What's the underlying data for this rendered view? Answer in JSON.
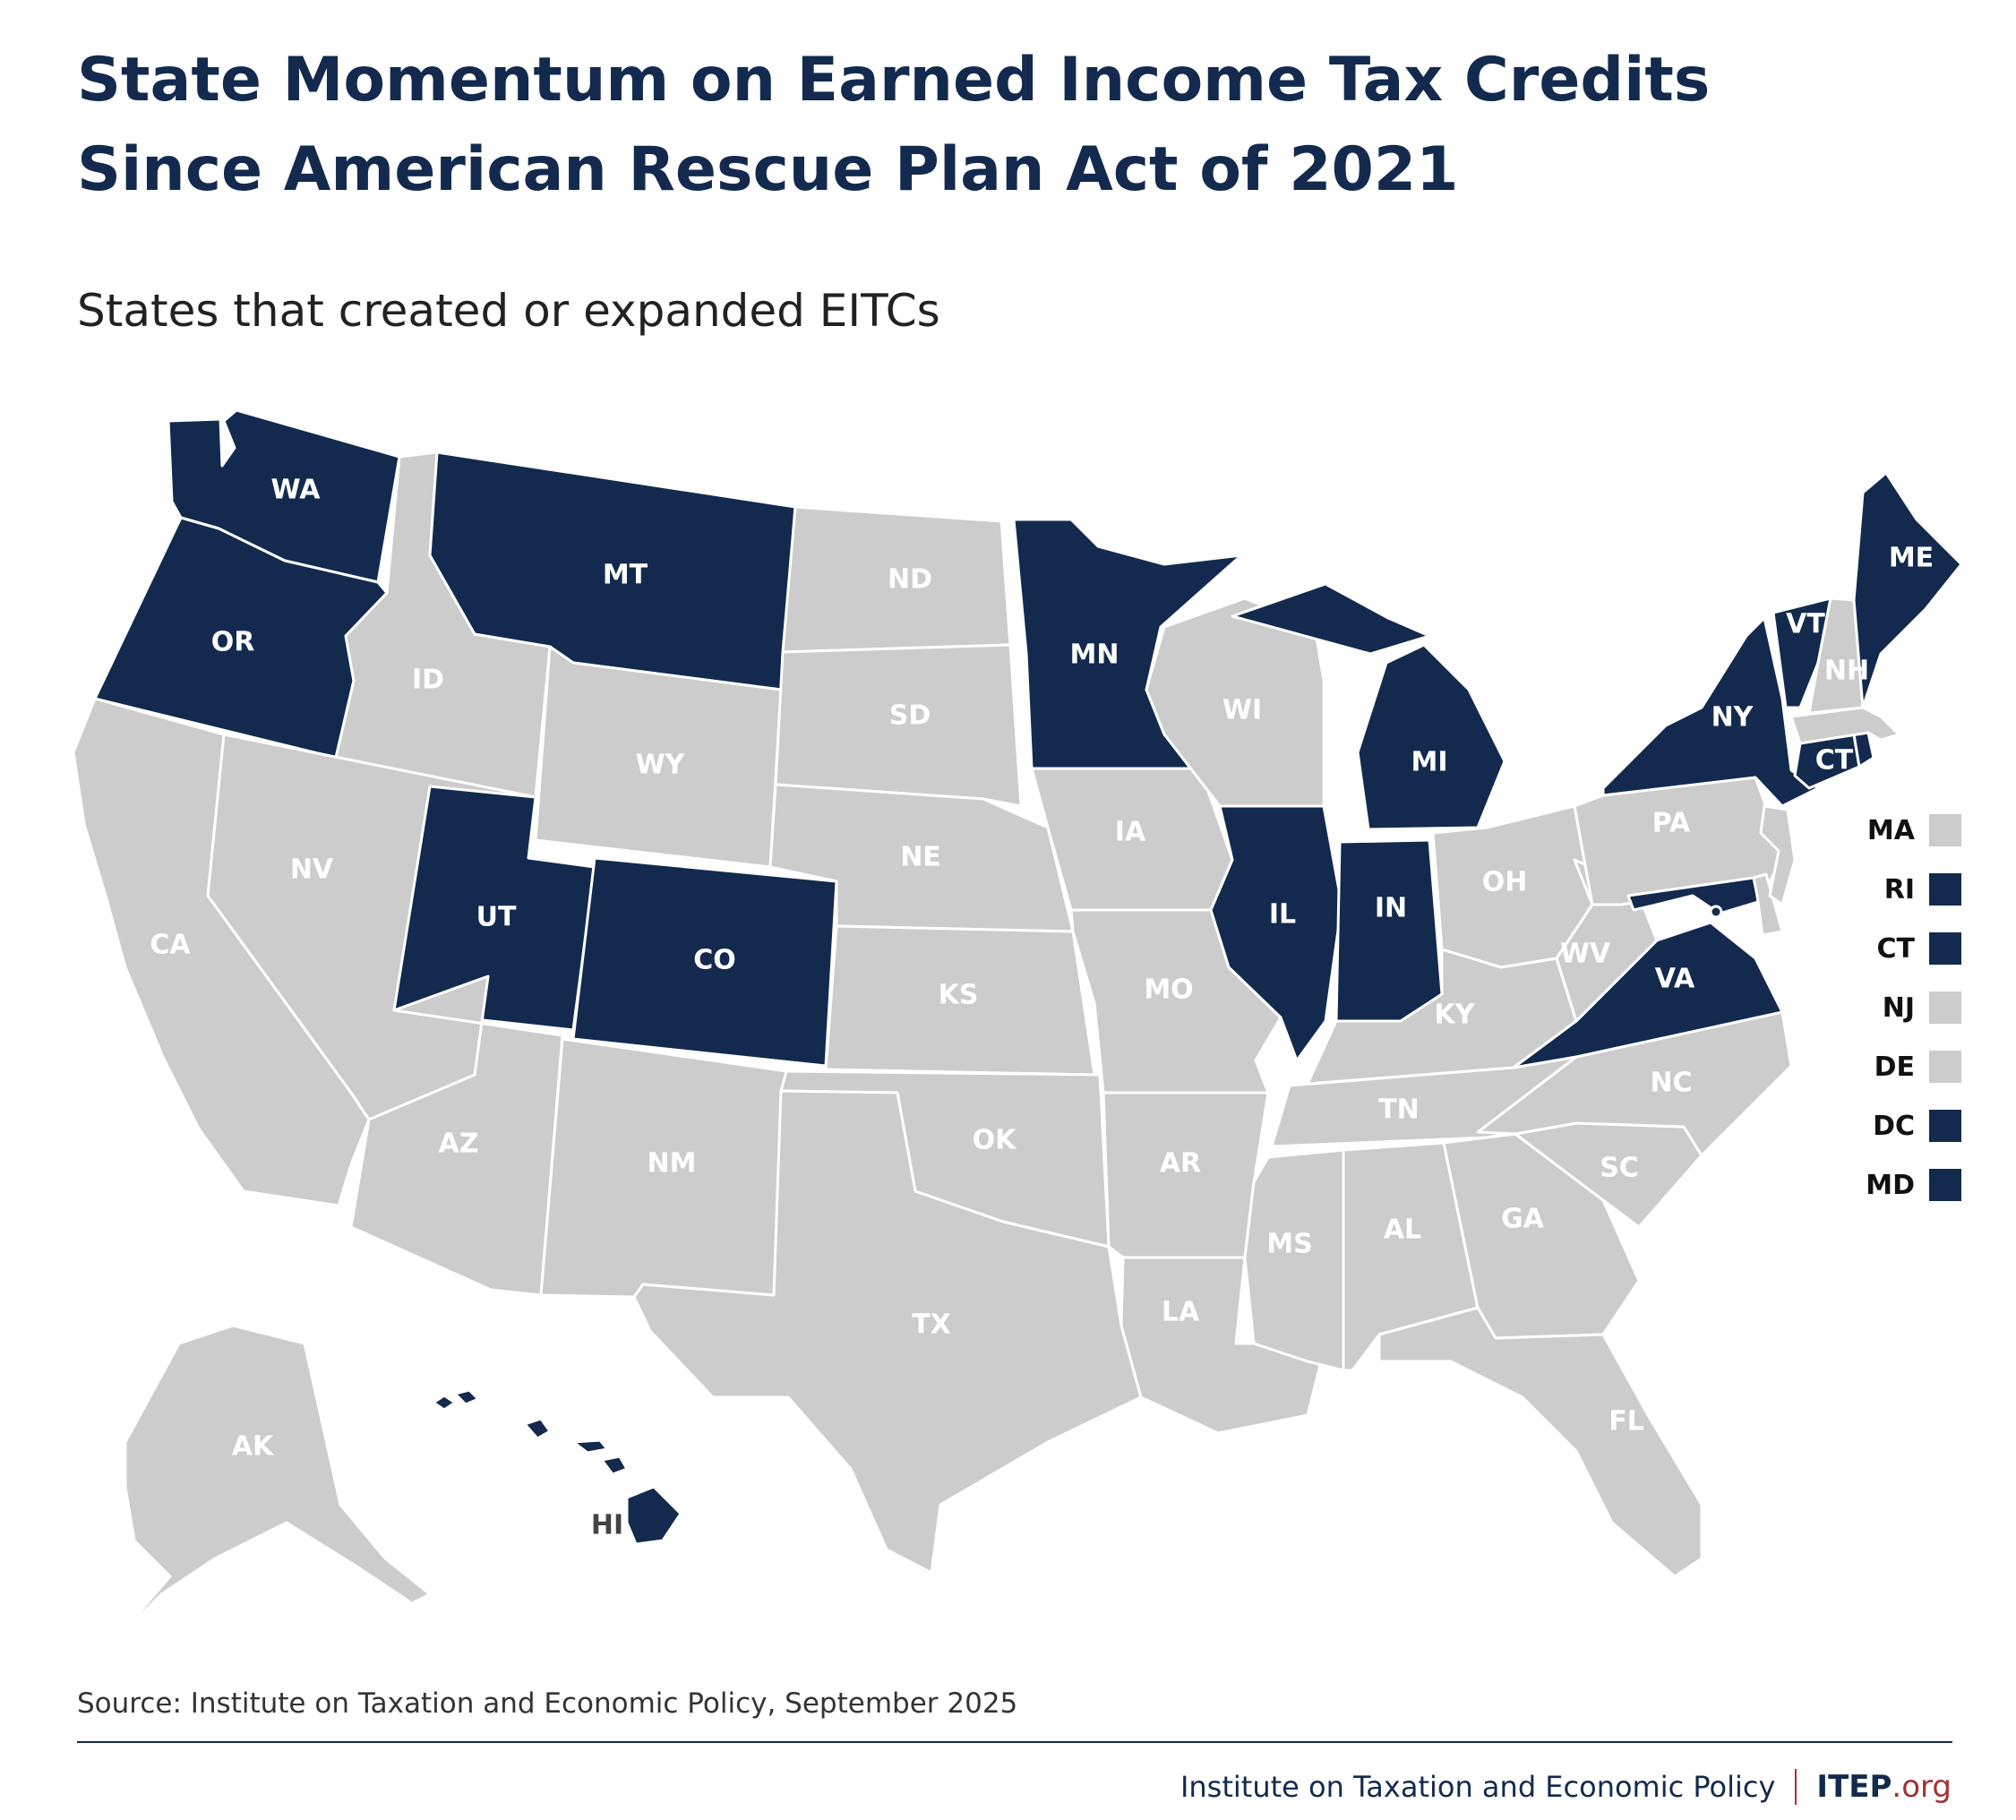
{
  "title_line1": "State Momentum on Earned Income Tax Credits",
  "title_line2": "Since American Rescue Plan Act of 2021",
  "subtitle": "States that created or expanded EITCs",
  "colors": {
    "yes": "#132a4e",
    "no": "#cccccc",
    "border": "#ffffff",
    "label_on_yes": "#ffffff",
    "label_on_no": "#ffffff",
    "label_outside": "#444444"
  },
  "states": [
    {
      "abbr": "WA",
      "eitc": true
    },
    {
      "abbr": "OR",
      "eitc": true
    },
    {
      "abbr": "CA",
      "eitc": false
    },
    {
      "abbr": "ID",
      "eitc": false
    },
    {
      "abbr": "NV",
      "eitc": false
    },
    {
      "abbr": "MT",
      "eitc": true
    },
    {
      "abbr": "WY",
      "eitc": false
    },
    {
      "abbr": "UT",
      "eitc": true
    },
    {
      "abbr": "AZ",
      "eitc": false
    },
    {
      "abbr": "CO",
      "eitc": true
    },
    {
      "abbr": "NM",
      "eitc": false
    },
    {
      "abbr": "ND",
      "eitc": false
    },
    {
      "abbr": "SD",
      "eitc": false
    },
    {
      "abbr": "NE",
      "eitc": false
    },
    {
      "abbr": "KS",
      "eitc": false
    },
    {
      "abbr": "OK",
      "eitc": false
    },
    {
      "abbr": "TX",
      "eitc": false
    },
    {
      "abbr": "MN",
      "eitc": true
    },
    {
      "abbr": "IA",
      "eitc": false
    },
    {
      "abbr": "MO",
      "eitc": false
    },
    {
      "abbr": "AR",
      "eitc": false
    },
    {
      "abbr": "LA",
      "eitc": false
    },
    {
      "abbr": "WI",
      "eitc": false
    },
    {
      "abbr": "IL",
      "eitc": true
    },
    {
      "abbr": "MI",
      "eitc": true
    },
    {
      "abbr": "IN",
      "eitc": true
    },
    {
      "abbr": "OH",
      "eitc": false
    },
    {
      "abbr": "KY",
      "eitc": false
    },
    {
      "abbr": "TN",
      "eitc": false
    },
    {
      "abbr": "MS",
      "eitc": false
    },
    {
      "abbr": "AL",
      "eitc": false
    },
    {
      "abbr": "GA",
      "eitc": false
    },
    {
      "abbr": "FL",
      "eitc": false
    },
    {
      "abbr": "SC",
      "eitc": false
    },
    {
      "abbr": "NC",
      "eitc": false
    },
    {
      "abbr": "VA",
      "eitc": true
    },
    {
      "abbr": "WV",
      "eitc": false
    },
    {
      "abbr": "PA",
      "eitc": false
    },
    {
      "abbr": "NY",
      "eitc": true
    },
    {
      "abbr": "VT",
      "eitc": true
    },
    {
      "abbr": "NH",
      "eitc": false
    },
    {
      "abbr": "ME",
      "eitc": true
    },
    {
      "abbr": "AK",
      "eitc": false
    },
    {
      "abbr": "HI",
      "eitc": true
    },
    {
      "abbr": "MD",
      "eitc": true
    },
    {
      "abbr": "DE",
      "eitc": false
    },
    {
      "abbr": "NJ",
      "eitc": false
    },
    {
      "abbr": "CT",
      "eitc": true
    },
    {
      "abbr": "RI",
      "eitc": true
    },
    {
      "abbr": "MA",
      "eitc": false
    },
    {
      "abbr": "DC",
      "eitc": true
    }
  ],
  "legend": [
    {
      "abbr": "MA",
      "eitc": false
    },
    {
      "abbr": "RI",
      "eitc": true
    },
    {
      "abbr": "CT",
      "eitc": true
    },
    {
      "abbr": "NJ",
      "eitc": false
    },
    {
      "abbr": "DE",
      "eitc": false
    },
    {
      "abbr": "DC",
      "eitc": true
    },
    {
      "abbr": "MD",
      "eitc": true
    }
  ],
  "source": "Source: Institute on Taxation and Economic Policy, September 2025",
  "footer": {
    "org_name": "Institute on Taxation and Economic Policy",
    "logo_main": "ITEP",
    "logo_suffix": ".org"
  }
}
